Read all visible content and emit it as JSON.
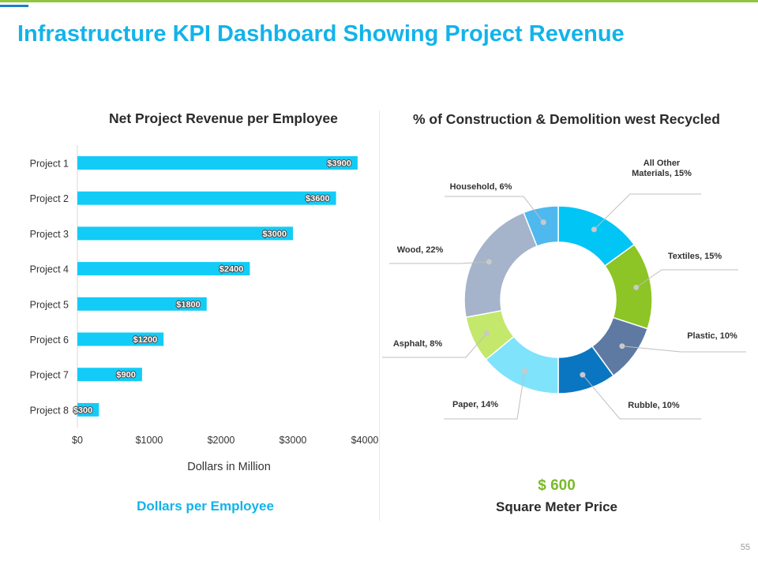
{
  "page": {
    "title": "Infrastructure KPI Dashboard Showing Project Revenue",
    "page_number": "55",
    "bar_caption": "Dollars per Employee",
    "price_value": "$ 600",
    "price_label": "Square Meter Price"
  },
  "colors": {
    "title": "#12b3ea",
    "bar": "#12ccf7",
    "accent_green": "#7ab929",
    "top_line": "#8dc63f"
  },
  "chart_data": [
    {
      "type": "bar",
      "orientation": "horizontal",
      "title": "Net Project Revenue per Employee",
      "categories": [
        "Project 1",
        "Project 2",
        "Project 3",
        "Project 4",
        "Project 5",
        "Project 6",
        "Project 7",
        "Project 8"
      ],
      "values": [
        3900,
        3600,
        3000,
        2400,
        1800,
        1200,
        900,
        300
      ],
      "data_labels": [
        "$3900",
        "$3600",
        "$3000",
        "$2400",
        "$1800",
        "$1200",
        "$900",
        "$300"
      ],
      "xlabel": "Dollars in Million",
      "ylabel": "",
      "xlim": [
        0,
        4000
      ],
      "x_ticks": [
        0,
        1000,
        2000,
        3000,
        4000
      ],
      "x_tick_labels": [
        "$0",
        "$1000",
        "$2000",
        "$3000",
        "$4000"
      ],
      "grid": false
    },
    {
      "type": "pie",
      "variant": "donut",
      "title": "% of Construction & Demolition west Recycled",
      "slices": [
        {
          "label": "All Other Materials, 15%",
          "label_lines": [
            "All Other",
            "Materials, 15%"
          ],
          "value": 15,
          "color": "#00c5f5"
        },
        {
          "label": "Textiles, 15%",
          "label_lines": [
            "Textiles, 15%"
          ],
          "value": 15,
          "color": "#8dc426"
        },
        {
          "label": "Plastic, 10%",
          "label_lines": [
            "Plastic, 10%"
          ],
          "value": 10,
          "color": "#5e7aa3"
        },
        {
          "label": "Rubble, 10%",
          "label_lines": [
            "Rubble, 10%"
          ],
          "value": 10,
          "color": "#0a76c2"
        },
        {
          "label": "Paper, 14%",
          "label_lines": [
            "Paper, 14%"
          ],
          "value": 14,
          "color": "#7ee3fb"
        },
        {
          "label": "Asphalt, 8%",
          "label_lines": [
            "Asphalt, 8%"
          ],
          "value": 8,
          "color": "#c4e86c"
        },
        {
          "label": "Wood, 22%",
          "label_lines": [
            "Wood, 22%"
          ],
          "value": 22,
          "color": "#a5b4ca"
        },
        {
          "label": "Household, 6%",
          "label_lines": [
            "Household, 6%"
          ],
          "value": 6,
          "color": "#4fb8ef"
        }
      ]
    }
  ]
}
